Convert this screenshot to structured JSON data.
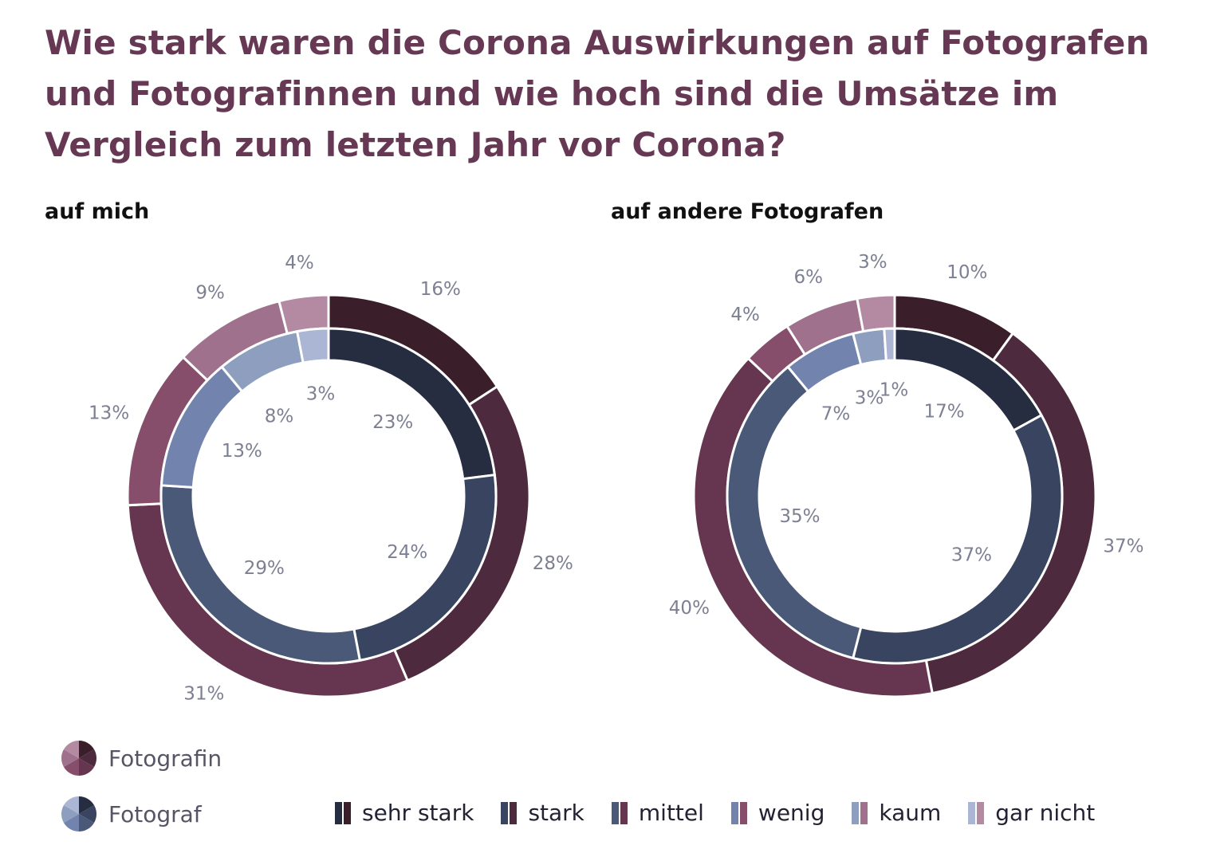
{
  "title": "Wie stark waren die Corona Auswirkungen auf Fotografen und Fotografinnen und wie hoch sind die Umsätze im Vergleich zum letzten Jahr vor Corona?",
  "colors": {
    "fotografin": [
      "#3a1f2b",
      "#4d2a3d",
      "#66354f",
      "#864e6b",
      "#a0718d",
      "#b38aa2"
    ],
    "fotograf": [
      "#262d40",
      "#394460",
      "#4b5979",
      "#7283ad",
      "#8e9ebe",
      "#aab6d3"
    ]
  },
  "chart_data": {
    "type": "donut",
    "title": "Wie stark waren die Corona Auswirkungen auf Fotografen und Fotografinnen und wie hoch sind die Umsätze im Vergleich zum letzten Jahr vor Corona?",
    "categories": [
      "sehr stark",
      "stark",
      "mittel",
      "wenig",
      "kaum",
      "gar nicht"
    ],
    "charts": [
      {
        "subtitle": "auf mich",
        "series": [
          {
            "name": "Fotografin",
            "ring": "outer",
            "values": [
              16,
              28,
              31,
              13,
              9,
              4
            ],
            "labels": [
              "16%",
              "28%",
              "31%",
              "13%",
              "9%",
              "4%"
            ]
          },
          {
            "name": "Fotograf",
            "ring": "inner",
            "values": [
              23,
              24,
              29,
              13,
              8,
              3
            ],
            "labels": [
              "23%",
              "24%",
              "29%",
              "13%",
              "8%",
              "3%"
            ]
          }
        ]
      },
      {
        "subtitle": "auf andere Fotografen",
        "series": [
          {
            "name": "Fotografin",
            "ring": "outer",
            "values": [
              10,
              37,
              40,
              4,
              6,
              3
            ],
            "labels": [
              "10%",
              "37%",
              "40%",
              "4%",
              "6%",
              "3%"
            ]
          },
          {
            "name": "Fotograf",
            "ring": "inner",
            "values": [
              17,
              37,
              35,
              7,
              3,
              1
            ],
            "labels": [
              "17%",
              "37%",
              "35%",
              "7%",
              "3%",
              "1%"
            ]
          }
        ]
      }
    ]
  },
  "legend": {
    "genders": [
      {
        "label": "Fotografin",
        "icon": "fotografin-pie-icon"
      },
      {
        "label": "Fotograf",
        "icon": "fotograf-pie-icon"
      }
    ],
    "levels": [
      {
        "label": "sehr stark"
      },
      {
        "label": "stark"
      },
      {
        "label": "mittel"
      },
      {
        "label": "wenig"
      },
      {
        "label": "kaum"
      },
      {
        "label": "gar nicht"
      }
    ]
  }
}
